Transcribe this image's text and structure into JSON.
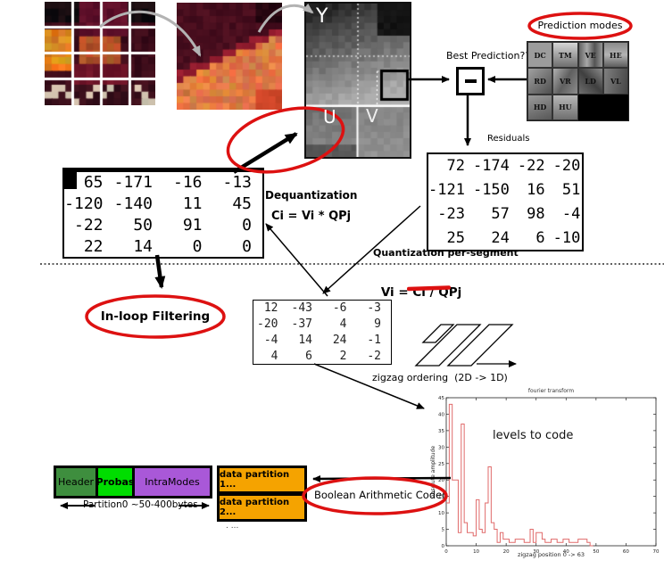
{
  "colors": {
    "red_accent": "#dd1111",
    "orange_box": "#f5a300",
    "header_green": "#3e8e3e",
    "probas_green": "#00dd00",
    "intramodes_purple": "#a958d8"
  },
  "source": {
    "y_label": "Y",
    "u_label": "U",
    "v_label": "V"
  },
  "prediction": {
    "modes_ellipse_label": "Prediction modes",
    "best_prediction_label": "Best Prediction???",
    "mode_labels": [
      "DC",
      "TM",
      "VE",
      "HE",
      "RD",
      "VR",
      "LD",
      "VL",
      "HD",
      "HU"
    ],
    "residuals_label": "Residuals"
  },
  "matrices": {
    "residuals": [
      [
        72,
        -174,
        -22,
        -20
      ],
      [
        -121,
        -150,
        16,
        51
      ],
      [
        -23,
        57,
        98,
        -4
      ],
      [
        25,
        24,
        6,
        -10
      ]
    ],
    "dequantized": [
      [
        65,
        -171,
        -16,
        -13
      ],
      [
        -120,
        -140,
        11,
        45
      ],
      [
        -22,
        50,
        91,
        0
      ],
      [
        22,
        14,
        0,
        0
      ]
    ],
    "quantized": [
      [
        12,
        -43,
        -6,
        -3
      ],
      [
        -20,
        -37,
        4,
        9
      ],
      [
        -4,
        14,
        24,
        -1
      ],
      [
        4,
        6,
        2,
        -2
      ]
    ]
  },
  "labels": {
    "dequantization_title": "Dequantization",
    "dequantization_formula": "Ci = Vi * QPj",
    "quantization_section": "Quantization per-segment",
    "quantization_formula_prefix": "Vi = Ci / ",
    "quantization_formula_qp": "QPj",
    "inloop_filtering": "In-loop Filtering",
    "zigzag_ordering": "zigzag ordering  (2D -> 1D)"
  },
  "bitstream": {
    "header": "Header",
    "probas": "Probas",
    "intramodes": "IntraModes",
    "partition0_caption": "Partition0 ~50-400bytes",
    "partition1": "data partition 1...",
    "partition2": "data partition 2...",
    "more_partitions": ". ...",
    "coder_ellipse_label": "Boolean Arithmetic Coder"
  },
  "chart_data": {
    "type": "line",
    "style": "step",
    "title": "fourier transform",
    "xlabel": "zigzag position  0 -> 63",
    "ylabel": "absolute amplitude",
    "annotation": "levels to code",
    "xlim": [
      0,
      70
    ],
    "ylim": [
      0,
      45
    ],
    "x_ticks": [
      0,
      10,
      20,
      30,
      40,
      50,
      60,
      70
    ],
    "y_ticks": [
      0,
      5,
      10,
      15,
      20,
      25,
      30,
      35,
      40,
      45
    ],
    "values": [
      13,
      43,
      20,
      20,
      4,
      37,
      7,
      4,
      4,
      3,
      14,
      5,
      4,
      13,
      24,
      7,
      5,
      1,
      4,
      2,
      2,
      1,
      1,
      2,
      2,
      2,
      1,
      1,
      5,
      1,
      4,
      4,
      2,
      1,
      1,
      2,
      2,
      1,
      1,
      2,
      2,
      1,
      1,
      1,
      2,
      2,
      2,
      1,
      0,
      0
    ],
    "line_color": "#e06a6a",
    "grid": false,
    "legend_position": "none"
  }
}
